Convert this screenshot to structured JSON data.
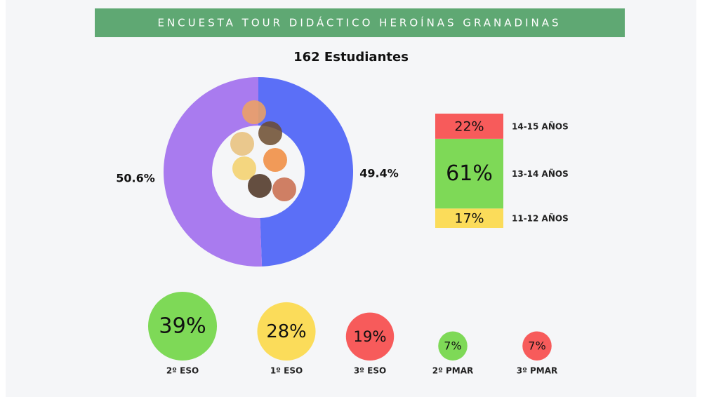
{
  "title": "ENCUESTA TOUR DIDÁCTICO HEROÍNAS GRANADINAS",
  "subtitle": "162 Estudiantes",
  "chart_data": [
    {
      "type": "pie",
      "values": [
        49.4,
        50.6
      ],
      "value_labels": [
        "49.4%",
        "50.6%"
      ],
      "colors": [
        "#5b6ff7",
        "#a97bef"
      ]
    },
    {
      "type": "bar",
      "stacked": true,
      "series": [
        {
          "name": "11-12 AÑOS",
          "color": "#fbdc5a",
          "values": [
            17
          ],
          "value_labels": [
            "17%"
          ]
        },
        {
          "name": "13-14 AÑOS",
          "color": "#7ed957",
          "values": [
            61
          ],
          "value_labels": [
            "61%"
          ]
        },
        {
          "name": "14-15 AÑOS",
          "color": "#f75b5b",
          "values": [
            22
          ],
          "value_labels": [
            "22%"
          ]
        }
      ]
    },
    {
      "type": "bubble",
      "categories": [
        "2º ESO",
        "1º ESO",
        "3º ESO",
        "2º PMAR",
        "3º PMAR"
      ],
      "values": [
        39,
        28,
        19,
        7,
        7
      ],
      "value_labels": [
        "39%",
        "28%",
        "19%",
        "7%",
        "7%"
      ],
      "colors": [
        "#7ed957",
        "#fbdc5a",
        "#f75b5b",
        "#7ed957",
        "#f75b5b"
      ]
    }
  ]
}
